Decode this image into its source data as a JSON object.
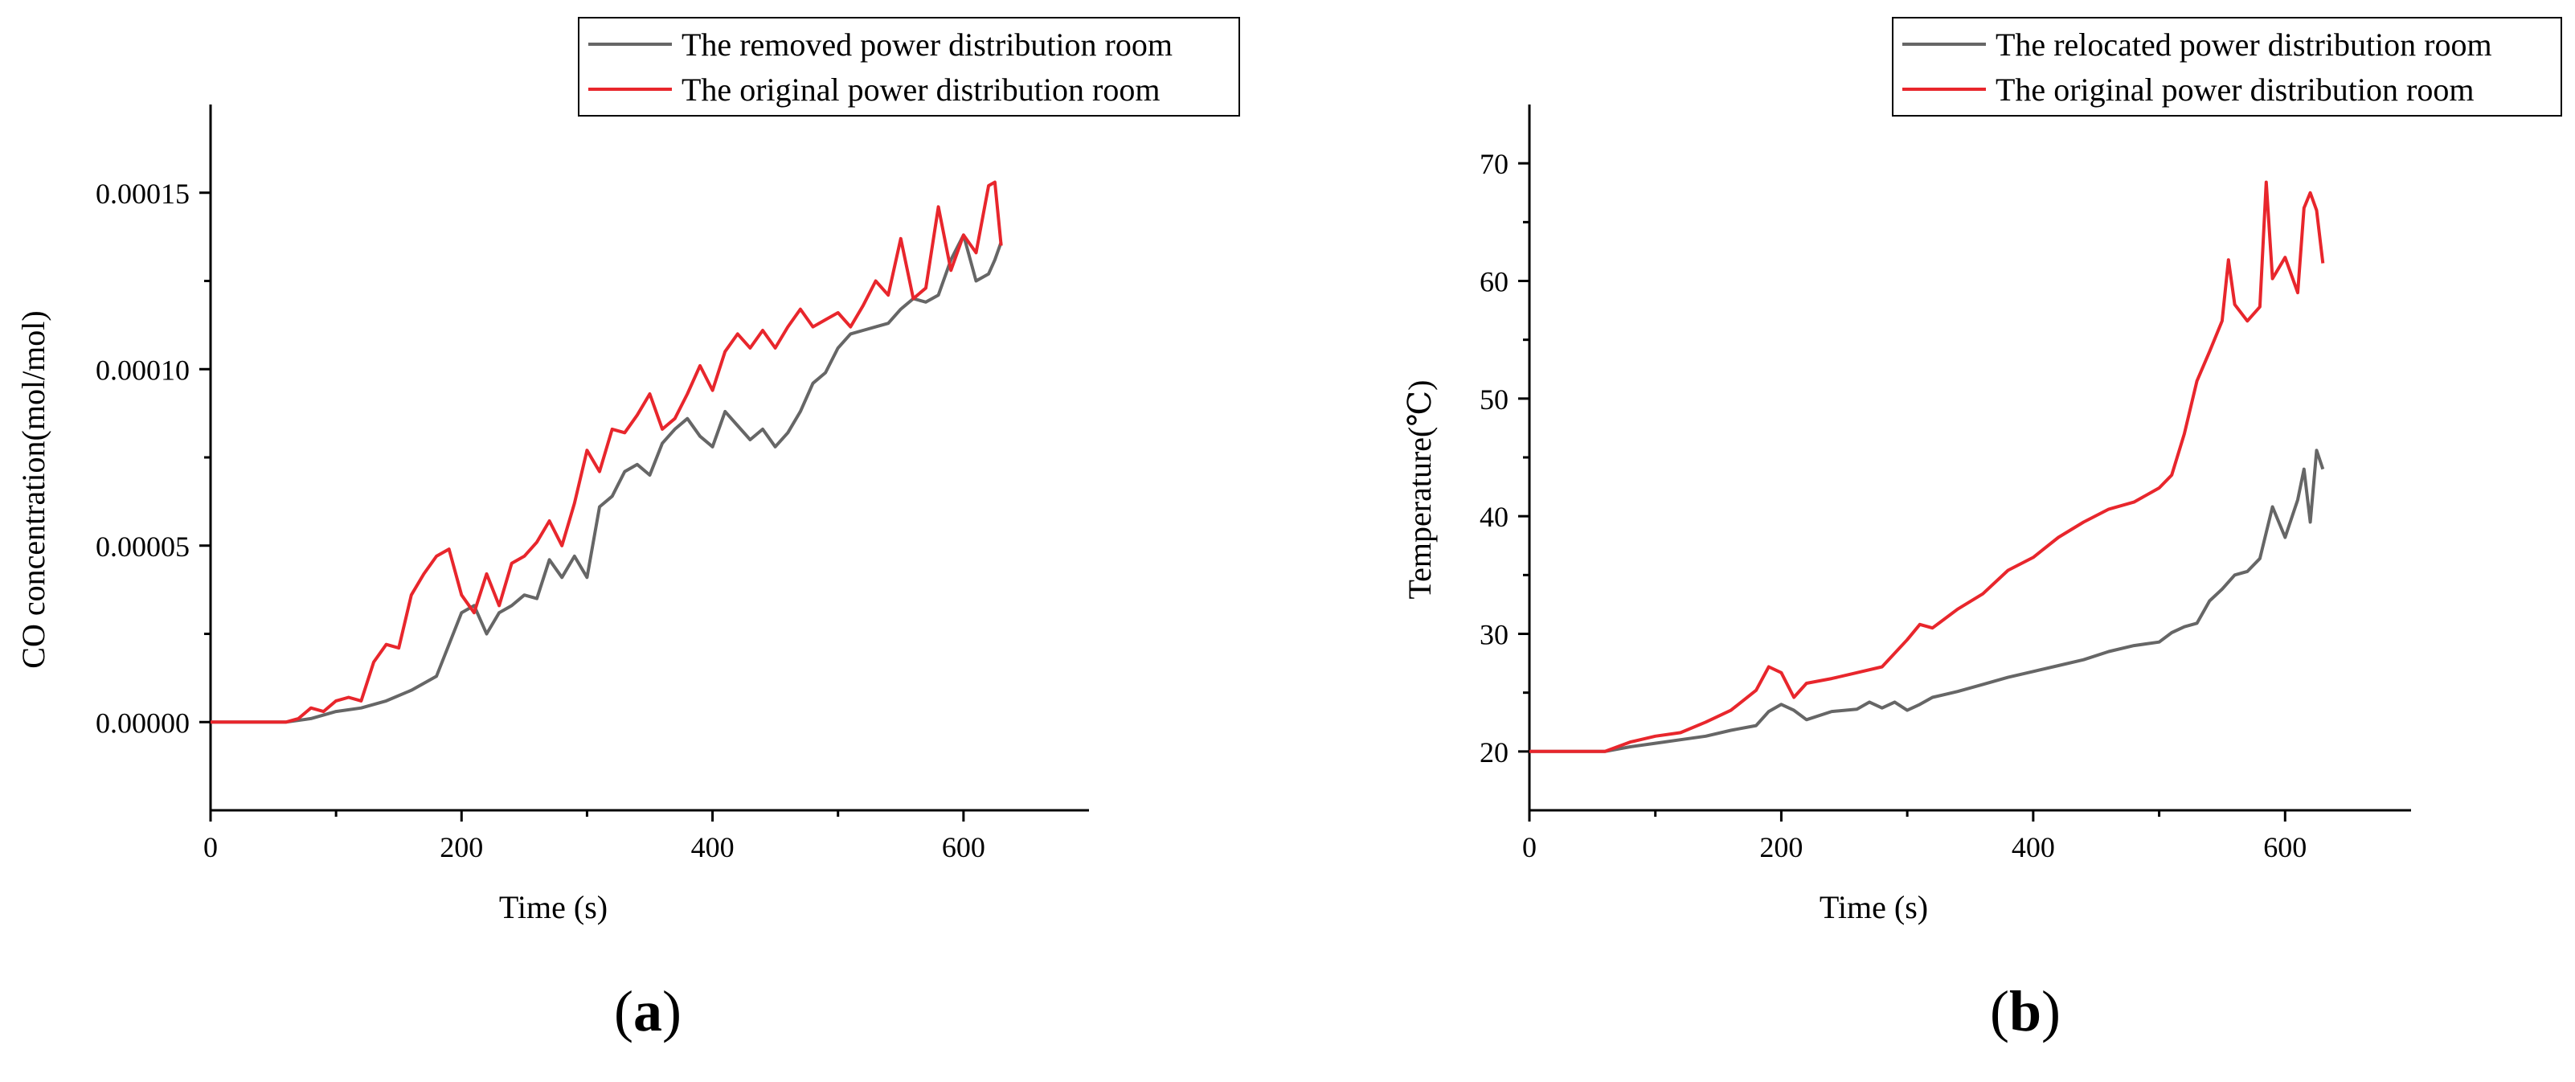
{
  "chart_data": [
    {
      "type": "line",
      "panel_label": "a",
      "xlabel": "Time (s)",
      "ylabel": "CO concentration(mol/mol)",
      "xlim": [
        0,
        700
      ],
      "ylim": [
        -2.5e-05,
        0.000175
      ],
      "xticks": [
        0,
        200,
        400,
        600
      ],
      "xtick_labels": [
        "0",
        "200",
        "400",
        "600"
      ],
      "yticks": [
        0,
        5e-05,
        0.0001,
        0.00015
      ],
      "ytick_labels": [
        "0.00000",
        "0.00005",
        "0.00010",
        "0.00015"
      ],
      "grid": false,
      "legend_position": "top-right",
      "series": [
        {
          "name": "The removed power distribution room",
          "color": "#666666",
          "x": [
            0,
            60,
            80,
            100,
            120,
            140,
            160,
            180,
            190,
            200,
            210,
            220,
            230,
            240,
            250,
            260,
            270,
            280,
            290,
            300,
            310,
            320,
            330,
            340,
            350,
            360,
            370,
            380,
            390,
            400,
            410,
            420,
            430,
            440,
            450,
            460,
            470,
            480,
            490,
            500,
            510,
            520,
            530,
            540,
            550,
            560,
            570,
            580,
            590,
            600,
            610,
            620,
            625,
            630
          ],
          "y": [
            0,
            0,
            1e-06,
            3e-06,
            4e-06,
            6e-06,
            9e-06,
            1.3e-05,
            2.2e-05,
            3.1e-05,
            3.3e-05,
            2.5e-05,
            3.1e-05,
            3.3e-05,
            3.6e-05,
            3.5e-05,
            4.6e-05,
            4.1e-05,
            4.7e-05,
            4.1e-05,
            6.1e-05,
            6.4e-05,
            7.1e-05,
            7.3e-05,
            7e-05,
            7.9e-05,
            8.3e-05,
            8.6e-05,
            8.1e-05,
            7.8e-05,
            8.8e-05,
            8.4e-05,
            8e-05,
            8.3e-05,
            7.8e-05,
            8.2e-05,
            8.8e-05,
            9.6e-05,
            9.9e-05,
            0.000106,
            0.00011,
            0.000111,
            0.000112,
            0.000113,
            0.000117,
            0.00012,
            0.000119,
            0.000121,
            0.000131,
            0.000138,
            0.000125,
            0.000127,
            0.000131,
            0.000136
          ]
        },
        {
          "name": "The original power distribution room",
          "color": "#e8262c",
          "x": [
            0,
            60,
            70,
            80,
            90,
            100,
            110,
            120,
            130,
            140,
            150,
            160,
            170,
            180,
            190,
            200,
            210,
            220,
            230,
            240,
            250,
            260,
            270,
            280,
            290,
            300,
            310,
            320,
            330,
            340,
            350,
            360,
            370,
            380,
            390,
            400,
            410,
            420,
            430,
            440,
            450,
            460,
            470,
            480,
            490,
            500,
            510,
            520,
            530,
            540,
            550,
            560,
            570,
            580,
            590,
            600,
            610,
            620,
            625,
            630
          ],
          "y": [
            0,
            0,
            1e-06,
            4e-06,
            3e-06,
            6e-06,
            7e-06,
            6e-06,
            1.7e-05,
            2.2e-05,
            2.1e-05,
            3.6e-05,
            4.2e-05,
            4.7e-05,
            4.9e-05,
            3.6e-05,
            3.1e-05,
            4.2e-05,
            3.3e-05,
            4.5e-05,
            4.7e-05,
            5.1e-05,
            5.7e-05,
            5e-05,
            6.2e-05,
            7.7e-05,
            7.1e-05,
            8.3e-05,
            8.2e-05,
            8.7e-05,
            9.3e-05,
            8.3e-05,
            8.6e-05,
            9.3e-05,
            0.000101,
            9.4e-05,
            0.000105,
            0.00011,
            0.000106,
            0.000111,
            0.000106,
            0.000112,
            0.000117,
            0.000112,
            0.000114,
            0.000116,
            0.000112,
            0.000118,
            0.000125,
            0.000121,
            0.000137,
            0.00012,
            0.000123,
            0.000146,
            0.000128,
            0.000138,
            0.000133,
            0.000152,
            0.000153,
            0.000135
          ]
        }
      ]
    },
    {
      "type": "line",
      "panel_label": "b",
      "xlabel": "Time (s)",
      "ylabel": "Temperature(℃)",
      "xlim": [
        0,
        700
      ],
      "ylim": [
        15,
        75
      ],
      "xticks": [
        0,
        200,
        400,
        600
      ],
      "xtick_labels": [
        "0",
        "200",
        "400",
        "600"
      ],
      "yticks": [
        20,
        30,
        40,
        50,
        60,
        70
      ],
      "ytick_labels": [
        "20",
        "30",
        "40",
        "50",
        "60",
        "70"
      ],
      "grid": false,
      "legend_position": "top-right",
      "series": [
        {
          "name": "The relocated power distribution room",
          "color": "#666666",
          "x": [
            0,
            60,
            80,
            100,
            120,
            140,
            160,
            180,
            190,
            200,
            210,
            220,
            240,
            260,
            270,
            280,
            290,
            300,
            310,
            320,
            340,
            360,
            380,
            400,
            420,
            440,
            460,
            480,
            500,
            510,
            520,
            530,
            540,
            550,
            560,
            570,
            580,
            590,
            600,
            610,
            615,
            620,
            625,
            630
          ],
          "y": [
            20,
            20,
            20.4,
            20.7,
            21,
            21.3,
            21.8,
            22.2,
            23.4,
            24,
            23.5,
            22.7,
            23.4,
            23.6,
            24.2,
            23.7,
            24.2,
            23.5,
            24,
            24.6,
            25.1,
            25.7,
            26.3,
            26.8,
            27.3,
            27.8,
            28.5,
            29,
            29.3,
            30.1,
            30.6,
            30.9,
            32.8,
            33.8,
            35,
            35.3,
            36.4,
            40.8,
            38.2,
            41.4,
            44,
            39.5,
            45.6,
            44
          ]
        },
        {
          "name": "The original power distribution room",
          "color": "#e8262c",
          "x": [
            0,
            60,
            80,
            100,
            120,
            140,
            160,
            180,
            190,
            200,
            210,
            220,
            240,
            260,
            280,
            300,
            310,
            320,
            340,
            360,
            380,
            400,
            420,
            440,
            460,
            480,
            500,
            510,
            520,
            530,
            540,
            550,
            555,
            560,
            570,
            580,
            585,
            590,
            600,
            610,
            615,
            620,
            625,
            630
          ],
          "y": [
            20,
            20,
            20.8,
            21.3,
            21.6,
            22.5,
            23.5,
            25.2,
            27.2,
            26.7,
            24.6,
            25.8,
            26.2,
            26.7,
            27.2,
            29.5,
            30.8,
            30.5,
            32.1,
            33.4,
            35.4,
            36.5,
            38.2,
            39.5,
            40.6,
            41.2,
            42.4,
            43.5,
            47,
            51.5,
            54,
            56.6,
            61.8,
            58,
            56.6,
            57.8,
            68.4,
            60.2,
            62,
            59,
            66.2,
            67.5,
            66,
            61.5
          ]
        }
      ]
    }
  ]
}
